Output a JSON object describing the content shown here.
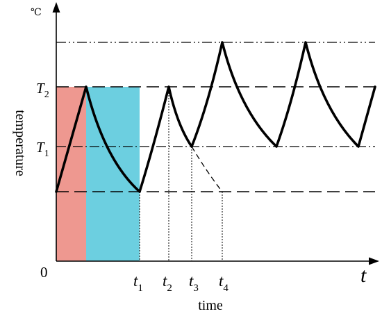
{
  "labels": {
    "unit": "℃",
    "y_axis": "temperature",
    "x_axis": "time",
    "origin": "0",
    "t_end": "t",
    "T2": {
      "base": "T",
      "sub": "2"
    },
    "T1": {
      "base": "T",
      "sub": "1"
    },
    "t1": {
      "base": "t",
      "sub": "1"
    },
    "t2": {
      "base": "t",
      "sub": "2"
    },
    "t3": {
      "base": "t",
      "sub": "3"
    },
    "t4": {
      "base": "t",
      "sub": "4"
    }
  },
  "colors": {
    "heating_region": "#ee9890",
    "cooling_region": "#6ccfe0",
    "curve": "#000000",
    "axis": "#000000"
  }
}
